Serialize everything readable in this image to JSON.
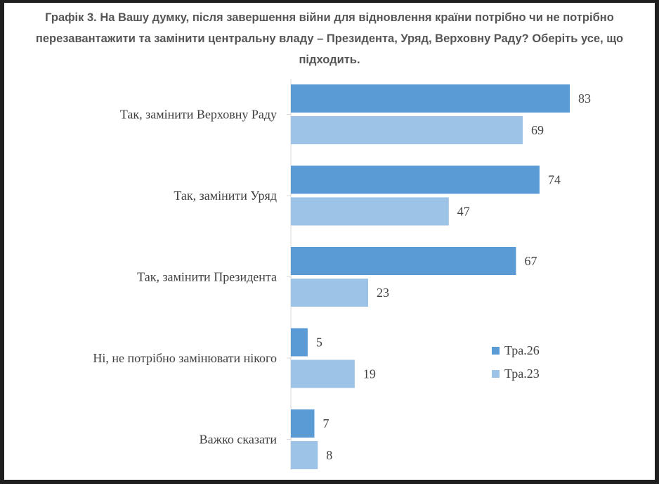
{
  "chart_data": {
    "type": "bar",
    "orientation": "horizontal",
    "title": "Графік 3. На Вашу думку, після завершення війни для відновлення країни потрібно чи не потрібно перезавантажити та замінити центральну владу – Президента, Уряд, Верховну Раду? Оберіть усе, що підходить.",
    "categories": [
      "Так, замінити Верховну Раду",
      "Так, замінити Уряд",
      "Так, замінити Президента",
      "Ні, не потрібно замінювати нікого",
      "Важко сказати"
    ],
    "series": [
      {
        "name": "Тра.26",
        "values": [
          83,
          74,
          67,
          5,
          7
        ],
        "color": "#5b9bd5"
      },
      {
        "name": "Тра.23",
        "values": [
          69,
          47,
          23,
          19,
          8
        ],
        "color": "#9dc3e6"
      }
    ],
    "xlim": [
      0,
      83
    ],
    "grid": false,
    "legend_position": "right"
  }
}
